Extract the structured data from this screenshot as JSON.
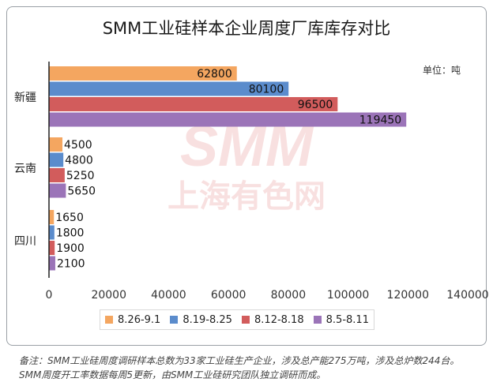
{
  "title": "SMM工业硅样本企业周度厂库库存对比",
  "unit_label": "单位：吨",
  "watermark": {
    "line1": "SMM",
    "line2": "上海有色网"
  },
  "note": {
    "line1": "备注：SMM工业硅周度调研样本总数为33家工业硅生产企业，涉及总产能275万吨，涉及总炉数244台。",
    "line2": "SMM周度开工率数据每周5更新，由SMM工业硅研究团队独立调研而成。"
  },
  "chart_data": {
    "type": "bar",
    "orientation": "horizontal",
    "title": "SMM工业硅样本企业周度厂库库存对比",
    "xlim": [
      0,
      140000
    ],
    "x_ticks": [
      "0",
      "20000",
      "40000",
      "60000",
      "80000",
      "100000",
      "120000",
      "140000"
    ],
    "categories": [
      "新疆",
      "云南",
      "四川"
    ],
    "series": [
      {
        "name": "8.26-9.1",
        "color": "#f4a660",
        "values": [
          62800,
          4500,
          1650
        ]
      },
      {
        "name": "8.19-8.25",
        "color": "#5b8ccc",
        "values": [
          80100,
          4800,
          1800
        ]
      },
      {
        "name": "8.12-8.18",
        "color": "#d25c5c",
        "values": [
          96500,
          5250,
          1900
        ]
      },
      {
        "name": "8.5-8.11",
        "color": "#9b74b8",
        "values": [
          119450,
          5650,
          2100
        ]
      }
    ],
    "legend_position": "bottom",
    "grid": false
  }
}
